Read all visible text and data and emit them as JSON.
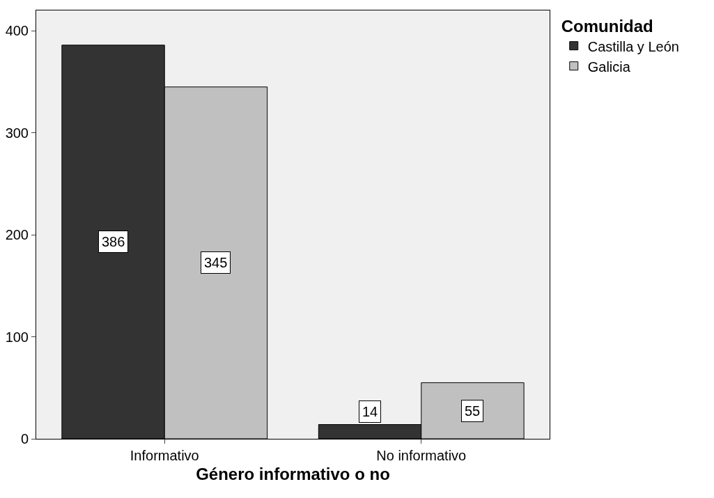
{
  "chart_data": {
    "type": "bar",
    "xlabel": "Género informativo o no",
    "legend_title": "Comunidad",
    "categories": [
      "Informativo",
      "No informativo"
    ],
    "series": [
      {
        "name": "Castilla y León",
        "color": "#333333",
        "values": [
          386,
          14
        ]
      },
      {
        "name": "Galicia",
        "color": "#c0c0c0",
        "values": [
          345,
          55
        ]
      }
    ],
    "ylim": [
      0,
      420
    ],
    "yticks": [
      0,
      100,
      200,
      300,
      400
    ],
    "grid": false,
    "legend": "top right",
    "data_labels": true
  }
}
